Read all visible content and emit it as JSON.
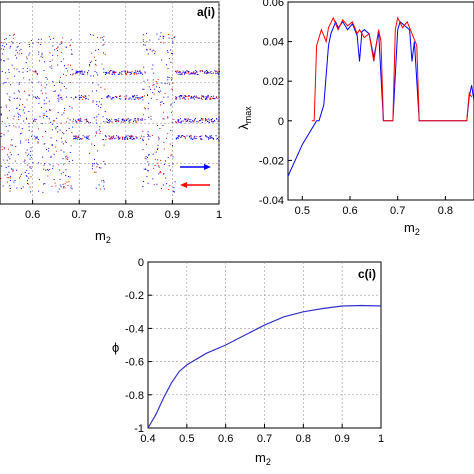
{
  "chart_data": [
    {
      "panel": "a(i)",
      "type": "scatter",
      "title": "",
      "panel_label": "a(i)",
      "xlabel_base": "m",
      "xlabel_sub": "2",
      "ylabel": "",
      "xlim": [
        0.53,
        1.0
      ],
      "xticks": [
        0.6,
        0.7,
        0.8,
        0.9,
        1
      ],
      "xtick_labels": [
        "0.6",
        "0.7",
        "0.8",
        "0.9",
        "1"
      ],
      "grid": true,
      "series": [
        {
          "direction": "forward",
          "color": "#0000ff"
        },
        {
          "direction": "backward",
          "color": "#ff0000"
        }
      ],
      "colors": {
        "forward": "#0000ff",
        "backward": "#ff0000"
      }
    },
    {
      "panel": "b",
      "type": "line",
      "title": "",
      "xlabel_base": "m",
      "xlabel_sub": "2",
      "ylabel_base": "λ",
      "ylabel_sub": "max",
      "xlim": [
        0.47,
        0.86
      ],
      "ylim": [
        -0.04,
        0.06
      ],
      "xticks": [
        0.5,
        0.6,
        0.7,
        0.8
      ],
      "xtick_labels": [
        "0.5",
        "0.6",
        "0.7",
        "0.8"
      ],
      "yticks": [
        -0.04,
        -0.02,
        0,
        0.02,
        0.04,
        0.06
      ],
      "ytick_labels": [
        "-0.04",
        "-0.02",
        "0",
        "0.02",
        "0.04",
        "0.06"
      ],
      "grid": false,
      "series": [
        {
          "color": "#0000ff",
          "x": [
            0.47,
            0.5,
            0.53,
            0.535,
            0.545,
            0.555,
            0.56,
            0.57,
            0.575,
            0.585,
            0.595,
            0.605,
            0.615,
            0.62,
            0.625,
            0.63,
            0.64,
            0.65,
            0.66,
            0.67,
            0.675,
            0.68,
            0.69,
            0.7,
            0.705,
            0.715,
            0.725,
            0.73,
            0.735,
            0.745,
            0.755,
            0.765,
            0.775,
            0.785,
            0.795,
            0.805,
            0.815,
            0.825,
            0.835,
            0.845,
            0.85,
            0.855,
            0.86
          ],
          "y": [
            -0.028,
            -0.012,
            0.0,
            0.0,
            0.008,
            0.038,
            0.044,
            0.05,
            0.047,
            0.05,
            0.046,
            0.049,
            0.043,
            0.03,
            0.045,
            0.046,
            0.044,
            0.032,
            0.045,
            0.0,
            0.0,
            0.0,
            0.0,
            0.046,
            0.05,
            0.048,
            0.046,
            0.03,
            0.04,
            0.0,
            0.0,
            0.0,
            0.0,
            0.0,
            0.0,
            0.0,
            0.0,
            0.0,
            0.0,
            0.0,
            0.012,
            0.018,
            0.01
          ]
        },
        {
          "color": "#ff0000",
          "x": [
            0.52,
            0.525,
            0.53,
            0.54,
            0.55,
            0.555,
            0.565,
            0.575,
            0.585,
            0.595,
            0.605,
            0.615,
            0.62,
            0.63,
            0.64,
            0.65,
            0.66,
            0.665,
            0.67,
            0.69,
            0.695,
            0.7,
            0.71,
            0.72,
            0.73,
            0.74,
            0.745,
            0.8,
            0.845,
            0.85,
            0.855
          ],
          "y": [
            0.0,
            0.0,
            0.038,
            0.046,
            0.04,
            0.047,
            0.052,
            0.046,
            0.051,
            0.048,
            0.05,
            0.044,
            0.046,
            0.042,
            0.044,
            0.03,
            0.046,
            0.04,
            0.0,
            0.0,
            0.046,
            0.052,
            0.047,
            0.05,
            0.044,
            0.038,
            0.0,
            0.0,
            0.0,
            0.014,
            0.012
          ]
        }
      ],
      "colors": {
        "primary": "#0000ff",
        "secondary": "#ff0000"
      }
    },
    {
      "panel": "c(i)",
      "type": "line",
      "title": "",
      "panel_label": "c(i)",
      "xlabel_base": "m",
      "xlabel_sub": "2",
      "ylabel": "ϕ",
      "xlim": [
        0.4,
        1.0
      ],
      "ylim": [
        -1.0,
        0.0
      ],
      "xticks": [
        0.4,
        0.5,
        0.6,
        0.7,
        0.8,
        0.9,
        1
      ],
      "xtick_labels": [
        "0.4",
        "0.5",
        "0.6",
        "0.7",
        "0.8",
        "0.9",
        "1"
      ],
      "yticks": [
        -1,
        -0.8,
        -0.6,
        -0.4,
        -0.2,
        0
      ],
      "ytick_labels": [
        "-1",
        "-0.8",
        "-0.6",
        "-0.4",
        "-0.2",
        "0"
      ],
      "grid": true,
      "series": [
        {
          "color": "#3333cc",
          "x": [
            0.4,
            0.42,
            0.44,
            0.46,
            0.48,
            0.5,
            0.55,
            0.6,
            0.65,
            0.7,
            0.75,
            0.8,
            0.85,
            0.9,
            0.95,
            1.0
          ],
          "y": [
            -1.0,
            -0.92,
            -0.82,
            -0.73,
            -0.66,
            -0.62,
            -0.55,
            -0.5,
            -0.44,
            -0.38,
            -0.33,
            -0.3,
            -0.28,
            -0.265,
            -0.262,
            -0.265
          ]
        }
      ],
      "colors": {
        "line": "#3333cc"
      }
    }
  ]
}
